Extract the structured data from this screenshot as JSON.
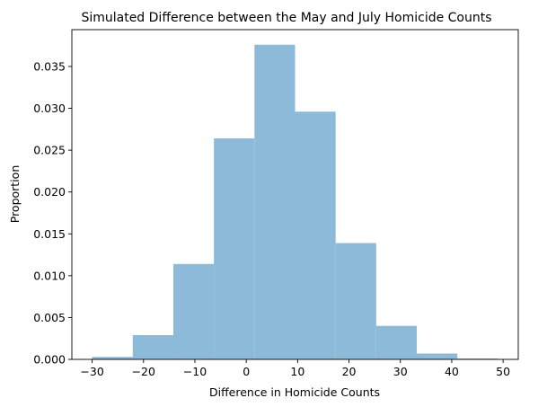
{
  "chart_data": {
    "type": "bar",
    "title": "Simulated Difference between the May and July Homicide Counts",
    "xlabel": "Difference in Homicide Counts",
    "ylabel": "Proportion",
    "xlim": [
      -33.95,
      52.95
    ],
    "ylim": [
      0,
      0.0394
    ],
    "x_ticks": [
      -30,
      -20,
      -10,
      0,
      10,
      20,
      30,
      40,
      50
    ],
    "x_tick_labels": [
      "−30",
      "−20",
      "−10",
      "0",
      "10",
      "20",
      "30",
      "40",
      "50"
    ],
    "y_ticks": [
      0.0,
      0.005,
      0.01,
      0.015,
      0.02,
      0.025,
      0.03,
      0.035
    ],
    "y_tick_labels": [
      "0.000",
      "0.005",
      "0.010",
      "0.015",
      "0.020",
      "0.025",
      "0.030",
      "0.035"
    ],
    "bin_edges": [
      -30,
      -22.1,
      -14.2,
      -6.3,
      1.6,
      9.5,
      17.4,
      25.3,
      33.2,
      41.1,
      49
    ],
    "values": [
      0.0003,
      0.0029,
      0.0114,
      0.0264,
      0.0376,
      0.0296,
      0.0139,
      0.004,
      0.0007,
      0.0001
    ],
    "bar_color": "#8ebad9",
    "grid": false,
    "legend": "none"
  }
}
